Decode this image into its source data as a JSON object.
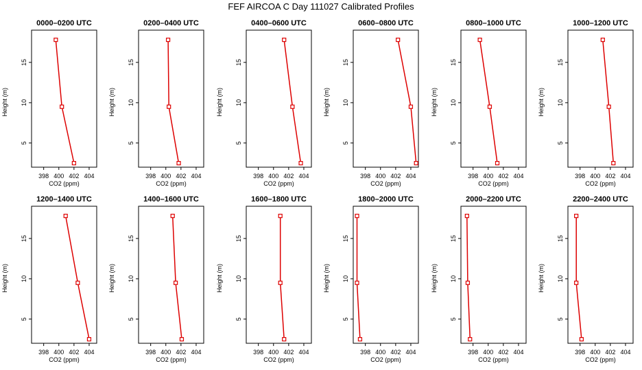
{
  "title": "FEF AIRCOA C  Day 111027  Calibrated Profiles",
  "colors": {
    "line": "#dd0000",
    "axis": "#000000"
  },
  "chart_data": [
    {
      "type": "line",
      "title": "0000–0200 UTC",
      "xlabel": "CO2 (ppm)",
      "ylabel": "Height (m)",
      "xlim": [
        396.4,
        405.0
      ],
      "ylim": [
        2,
        19
      ],
      "xticks": [
        398,
        400,
        402,
        404
      ],
      "yticks": [
        5,
        10,
        15
      ],
      "points": [
        {
          "co2": 399.6,
          "height": 17.8
        },
        {
          "co2": 400.4,
          "height": 9.5
        },
        {
          "co2": 402.0,
          "height": 2.5
        }
      ]
    },
    {
      "type": "line",
      "title": "0200–0400 UTC",
      "xlabel": "CO2 (ppm)",
      "ylabel": "Height (m)",
      "xlim": [
        396.4,
        405.0
      ],
      "ylim": [
        2,
        19
      ],
      "xticks": [
        398,
        400,
        402,
        404
      ],
      "yticks": [
        5,
        10,
        15
      ],
      "points": [
        {
          "co2": 400.3,
          "height": 17.8
        },
        {
          "co2": 400.4,
          "height": 9.5
        },
        {
          "co2": 401.7,
          "height": 2.5
        }
      ]
    },
    {
      "type": "line",
      "title": "0400–0600 UTC",
      "xlabel": "CO2 (ppm)",
      "ylabel": "Height (m)",
      "xlim": [
        396.4,
        405.0
      ],
      "ylim": [
        2,
        19
      ],
      "xticks": [
        398,
        400,
        402,
        404
      ],
      "yticks": [
        5,
        10,
        15
      ],
      "points": [
        {
          "co2": 401.4,
          "height": 17.8
        },
        {
          "co2": 402.5,
          "height": 9.5
        },
        {
          "co2": 403.6,
          "height": 2.5
        }
      ]
    },
    {
      "type": "line",
      "title": "0600–0800 UTC",
      "xlabel": "CO2 (ppm)",
      "ylabel": "Height (m)",
      "xlim": [
        396.4,
        405.0
      ],
      "ylim": [
        2,
        19
      ],
      "xticks": [
        398,
        400,
        402,
        404
      ],
      "yticks": [
        5,
        10,
        15
      ],
      "points": [
        {
          "co2": 402.3,
          "height": 17.8
        },
        {
          "co2": 404.0,
          "height": 9.5
        },
        {
          "co2": 404.7,
          "height": 2.5
        }
      ]
    },
    {
      "type": "line",
      "title": "0800–1000 UTC",
      "xlabel": "CO2 (ppm)",
      "ylabel": "Height (m)",
      "xlim": [
        396.4,
        405.0
      ],
      "ylim": [
        2,
        19
      ],
      "xticks": [
        398,
        400,
        402,
        404
      ],
      "yticks": [
        5,
        10,
        15
      ],
      "points": [
        {
          "co2": 398.9,
          "height": 17.8
        },
        {
          "co2": 400.2,
          "height": 9.5
        },
        {
          "co2": 401.2,
          "height": 2.5
        }
      ]
    },
    {
      "type": "line",
      "title": "1000–1200 UTC",
      "xlabel": "CO2 (ppm)",
      "ylabel": "Height (m)",
      "xlim": [
        396.4,
        405.0
      ],
      "ylim": [
        2,
        19
      ],
      "xticks": [
        398,
        400,
        402,
        404
      ],
      "yticks": [
        5,
        10,
        15
      ],
      "points": [
        {
          "co2": 401.0,
          "height": 17.8
        },
        {
          "co2": 401.8,
          "height": 9.5
        },
        {
          "co2": 402.4,
          "height": 2.5
        }
      ]
    },
    {
      "type": "line",
      "title": "1200–1400 UTC",
      "xlabel": "CO2 (ppm)",
      "ylabel": "Height (m)",
      "xlim": [
        396.4,
        405.0
      ],
      "ylim": [
        2,
        19
      ],
      "xticks": [
        398,
        400,
        402,
        404
      ],
      "yticks": [
        5,
        10,
        15
      ],
      "points": [
        {
          "co2": 400.9,
          "height": 17.8
        },
        {
          "co2": 402.5,
          "height": 9.5
        },
        {
          "co2": 404.0,
          "height": 2.5
        }
      ]
    },
    {
      "type": "line",
      "title": "1400–1600 UTC",
      "xlabel": "CO2 (ppm)",
      "ylabel": "Height (m)",
      "xlim": [
        396.4,
        405.0
      ],
      "ylim": [
        2,
        19
      ],
      "xticks": [
        398,
        400,
        402,
        404
      ],
      "yticks": [
        5,
        10,
        15
      ],
      "points": [
        {
          "co2": 400.9,
          "height": 17.8
        },
        {
          "co2": 401.3,
          "height": 9.5
        },
        {
          "co2": 402.1,
          "height": 2.5
        }
      ]
    },
    {
      "type": "line",
      "title": "1600–1800 UTC",
      "xlabel": "CO2 (ppm)",
      "ylabel": "Height (m)",
      "xlim": [
        396.4,
        405.0
      ],
      "ylim": [
        2,
        19
      ],
      "xticks": [
        398,
        400,
        402,
        404
      ],
      "yticks": [
        5,
        10,
        15
      ],
      "points": [
        {
          "co2": 400.9,
          "height": 17.8
        },
        {
          "co2": 400.9,
          "height": 9.5
        },
        {
          "co2": 401.4,
          "height": 2.5
        }
      ]
    },
    {
      "type": "line",
      "title": "1800–2000 UTC",
      "xlabel": "CO2 (ppm)",
      "ylabel": "Height (m)",
      "xlim": [
        396.4,
        405.0
      ],
      "ylim": [
        2,
        19
      ],
      "xticks": [
        398,
        400,
        402,
        404
      ],
      "yticks": [
        5,
        10,
        15
      ],
      "points": [
        {
          "co2": 396.9,
          "height": 17.8
        },
        {
          "co2": 396.9,
          "height": 9.5
        },
        {
          "co2": 397.3,
          "height": 2.5
        }
      ]
    },
    {
      "type": "line",
      "title": "2000–2200 UTC",
      "xlabel": "CO2 (ppm)",
      "ylabel": "Height (m)",
      "xlim": [
        396.4,
        405.0
      ],
      "ylim": [
        2,
        19
      ],
      "xticks": [
        398,
        400,
        402,
        404
      ],
      "yticks": [
        5,
        10,
        15
      ],
      "points": [
        {
          "co2": 397.2,
          "height": 17.8
        },
        {
          "co2": 397.3,
          "height": 9.5
        },
        {
          "co2": 397.6,
          "height": 2.5
        }
      ]
    },
    {
      "type": "line",
      "title": "2200–2400 UTC",
      "xlabel": "CO2 (ppm)",
      "ylabel": "Height (m)",
      "xlim": [
        396.4,
        405.0
      ],
      "ylim": [
        2,
        19
      ],
      "xticks": [
        398,
        400,
        402,
        404
      ],
      "yticks": [
        5,
        10,
        15
      ],
      "points": [
        {
          "co2": 397.5,
          "height": 17.8
        },
        {
          "co2": 397.5,
          "height": 9.5
        },
        {
          "co2": 398.2,
          "height": 2.5
        }
      ]
    }
  ]
}
